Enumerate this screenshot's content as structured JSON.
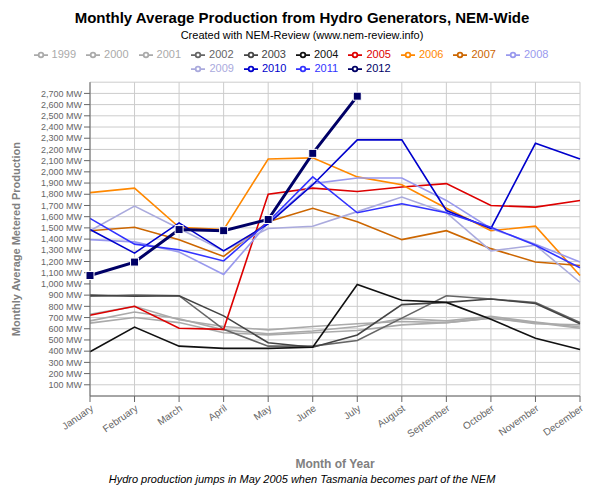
{
  "chart_data": {
    "type": "line",
    "title": "Monthly Average Production from Hydro Generators, NEM-Wide",
    "subtitle": "Created with NEM-Review (www.nem-review.info)",
    "xlabel": "Month of Year",
    "ylabel": "Monthly Average Metered Production",
    "footnote": "Hydro production jumps in May 2005 when Tasmania becomes part of the NEM",
    "categories": [
      "January",
      "February",
      "March",
      "April",
      "May",
      "June",
      "July",
      "August",
      "September",
      "October",
      "November",
      "December"
    ],
    "ylim": [
      0,
      2800
    ],
    "yticks": [
      {
        "value": 100,
        "label": "100 MW"
      },
      {
        "value": 200,
        "label": "200 MW"
      },
      {
        "value": 300,
        "label": "300 MW"
      },
      {
        "value": 400,
        "label": "400 MW"
      },
      {
        "value": 500,
        "label": "500 MW"
      },
      {
        "value": 600,
        "label": "600 MW"
      },
      {
        "value": 700,
        "label": "700 MW"
      },
      {
        "value": 800,
        "label": "800 MW"
      },
      {
        "value": 900,
        "label": "900 MW"
      },
      {
        "value": 1000,
        "label": "1,000 MW"
      },
      {
        "value": 1100,
        "label": "1,100 MW"
      },
      {
        "value": 1200,
        "label": "1,200 MW"
      },
      {
        "value": 1300,
        "label": "1,300 MW"
      },
      {
        "value": 1400,
        "label": "1,400 MW"
      },
      {
        "value": 1500,
        "label": "1,500 MW"
      },
      {
        "value": 1600,
        "label": "1,600 MW"
      },
      {
        "value": 1700,
        "label": "1,700 MW"
      },
      {
        "value": 1800,
        "label": "1,800 MW"
      },
      {
        "value": 1900,
        "label": "1,900 MW"
      },
      {
        "value": 2000,
        "label": "2,000 MW"
      },
      {
        "value": 2100,
        "label": "2,100 MW"
      },
      {
        "value": 2200,
        "label": "2,200 MW"
      },
      {
        "value": 2300,
        "label": "2,300 MW"
      },
      {
        "value": 2400,
        "label": "2,400 MW"
      },
      {
        "value": 2500,
        "label": "2,500 MW"
      },
      {
        "value": 2600,
        "label": "2,600 MW"
      },
      {
        "value": 2700,
        "label": "2,700 MW"
      }
    ],
    "grid": true,
    "legend": "top",
    "series": [
      {
        "name": "1999",
        "color": "#aaaaaa",
        "values": [
          730,
          800,
          680,
          620,
          590,
          620,
          645,
          665,
          655,
          695,
          645,
          635
        ]
      },
      {
        "name": "2000",
        "color": "#aaaaaa",
        "values": [
          670,
          750,
          690,
          590,
          555,
          580,
          620,
          690,
          670,
          710,
          660,
          615
        ]
      },
      {
        "name": "2001",
        "color": "#aaaaaa",
        "values": [
          650,
          700,
          655,
          565,
          545,
          565,
          585,
          635,
          655,
          695,
          655,
          605
        ]
      },
      {
        "name": "2002",
        "color": "#666666",
        "values": [
          890,
          900,
          895,
          595,
          445,
          445,
          495,
          695,
          895,
          865,
          835,
          655
        ]
      },
      {
        "name": "2003",
        "color": "#444444",
        "values": [
          900,
          890,
          895,
          715,
          475,
          435,
          545,
          815,
          835,
          865,
          825,
          645
        ]
      },
      {
        "name": "2004",
        "color": "#111111",
        "values": [
          395,
          615,
          445,
          425,
          425,
          435,
          995,
          855,
          835,
          685,
          515,
          415
        ]
      },
      {
        "name": "2005",
        "color": "#dd0000",
        "values": [
          720,
          800,
          605,
          595,
          1800,
          1855,
          1825,
          1865,
          1895,
          1700,
          1685,
          1745
        ]
      },
      {
        "name": "2006",
        "color": "#ff8800",
        "values": [
          1815,
          1855,
          1505,
          1485,
          2115,
          2125,
          1955,
          1885,
          1675,
          1475,
          1515,
          1075
        ]
      },
      {
        "name": "2007",
        "color": "#cc6600",
        "values": [
          1475,
          1505,
          1395,
          1245,
          1555,
          1675,
          1555,
          1395,
          1475,
          1315,
          1195,
          1165
        ]
      },
      {
        "name": "2008",
        "color": "#9999ee",
        "values": [
          1395,
          1375,
          1285,
          1085,
          1545,
          1895,
          1945,
          1945,
          1745,
          1495,
          1355,
          1195
        ]
      },
      {
        "name": "2009",
        "color": "#aaaadd",
        "values": [
          1475,
          1695,
          1495,
          1295,
          1495,
          1515,
          1645,
          1775,
          1635,
          1295,
          1345,
          1015
        ]
      },
      {
        "name": "2010",
        "color": "#0000cc",
        "values": [
          1485,
          1275,
          1545,
          1295,
          1535,
          1885,
          2285,
          2285,
          1655,
          1495,
          2255,
          2115
        ]
      },
      {
        "name": "2011",
        "color": "#3333ff",
        "values": [
          1585,
          1355,
          1305,
          1205,
          1555,
          1955,
          1635,
          1715,
          1635,
          1505,
          1345,
          1145
        ]
      },
      {
        "name": "2012",
        "color": "#000066",
        "marker": "square",
        "values": [
          1075,
          1195,
          1485,
          1475,
          1575,
          2165,
          2675,
          null,
          null,
          null,
          null,
          null
        ]
      }
    ]
  }
}
